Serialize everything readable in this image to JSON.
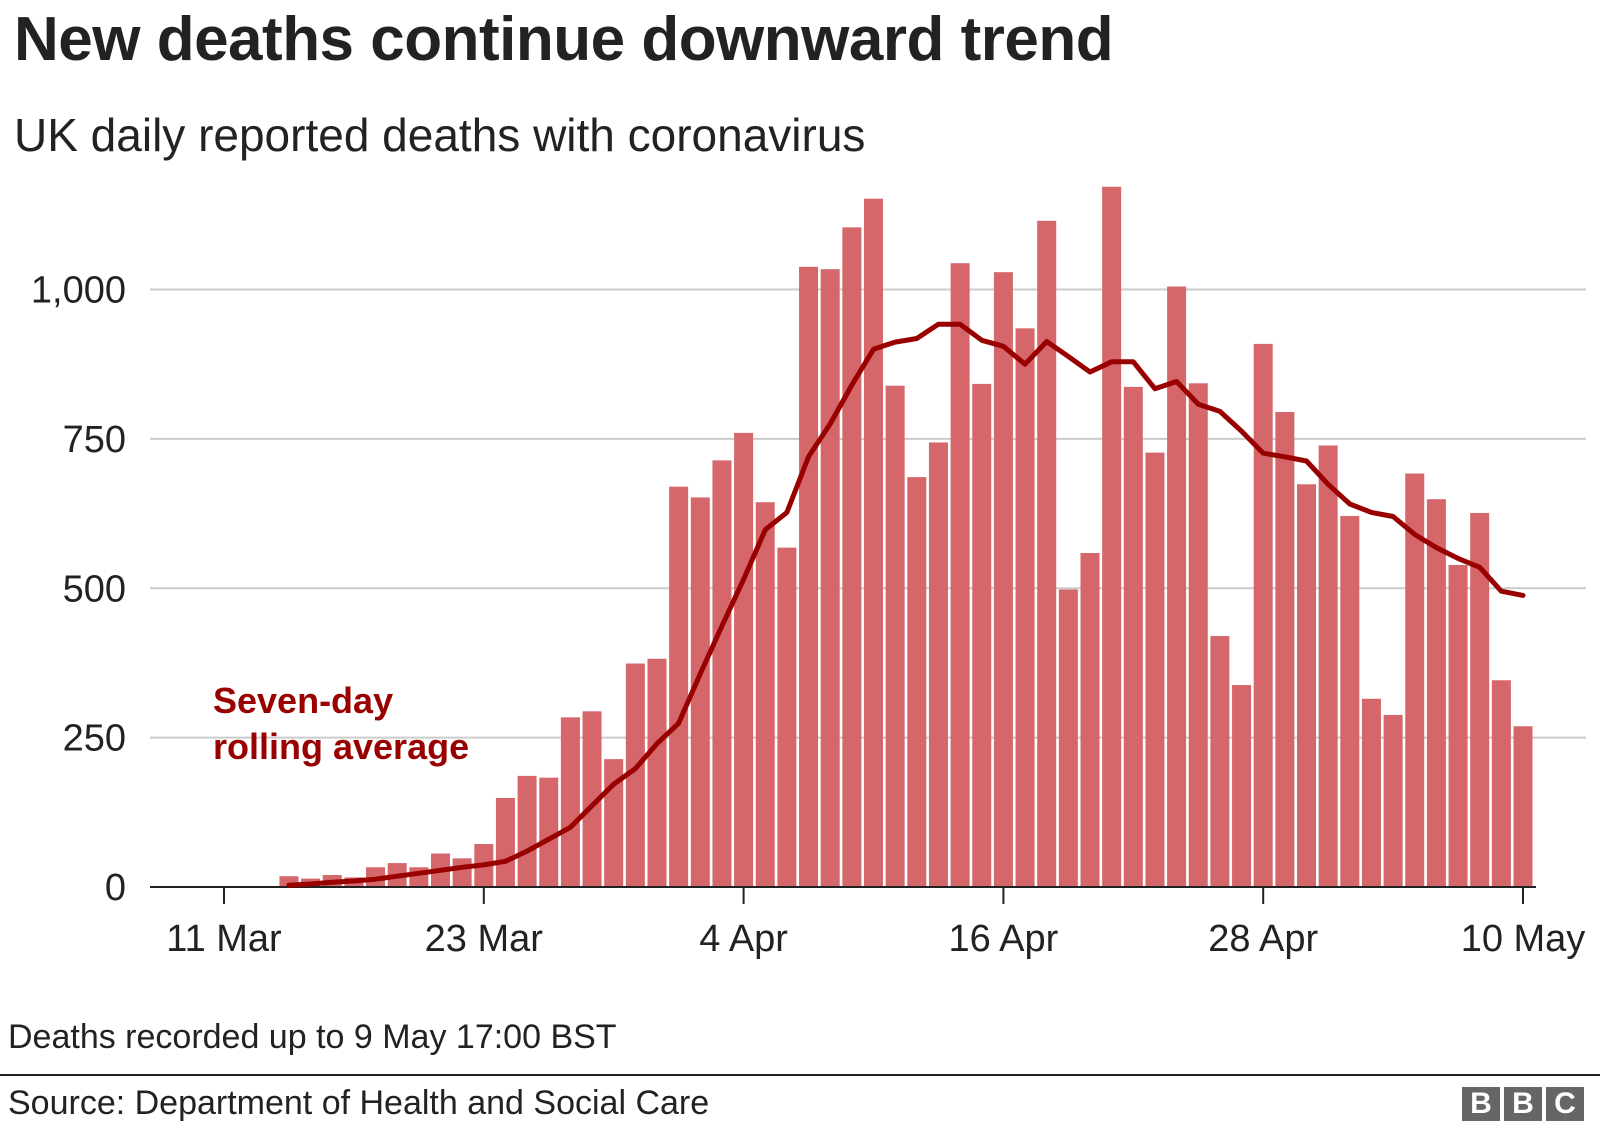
{
  "header": {
    "title": "New deaths continue downward trend",
    "subtitle": "UK daily reported deaths with coronavirus"
  },
  "footer": {
    "note": "Deaths recorded up to 9 May 17:00 BST",
    "source": "Source: Department of Health and Social Care",
    "logo_letters": [
      "B",
      "B",
      "C"
    ],
    "logo_color": "#666666"
  },
  "chart_data": {
    "type": "bar",
    "x_start_date": "2020-03-11",
    "x_end_date": "2020-05-10",
    "first_bar_date": "2020-03-14",
    "x_ticks": [
      "11 Mar",
      "23 Mar",
      "4 Apr",
      "16 Apr",
      "28 Apr",
      "10 May"
    ],
    "y_ticks": [
      0,
      250,
      500,
      750,
      1000
    ],
    "y_tick_labels": [
      "0",
      "250",
      "500",
      "750",
      "1,000"
    ],
    "ylim": [
      0,
      1200
    ],
    "grid": true,
    "series": [
      {
        "name": "Daily reported deaths",
        "kind": "bar",
        "color": "#d5666a",
        "values": [
          18,
          14,
          20,
          16,
          33,
          40,
          33,
          56,
          48,
          72,
          149,
          186,
          183,
          284,
          294,
          214,
          374,
          382,
          670,
          652,
          714,
          760,
          644,
          568,
          1038,
          1034,
          1104,
          1152,
          839,
          686,
          744,
          1044,
          842,
          1029,
          935,
          1115,
          498,
          559,
          1172,
          837,
          727,
          1005,
          843,
          420,
          338,
          909,
          795,
          674,
          739,
          621,
          315,
          288,
          692,
          649,
          539,
          626,
          346,
          269
        ]
      },
      {
        "name": "Seven-day rolling average",
        "kind": "line",
        "color": "#990000",
        "values": [
          3,
          5,
          8,
          10,
          13,
          18,
          23,
          28,
          33,
          37,
          43,
          60,
          80,
          100,
          136,
          172,
          198,
          240,
          274,
          357,
          437,
          515,
          598,
          627,
          720,
          775,
          840,
          900,
          912,
          918,
          942,
          942,
          915,
          905,
          875,
          913,
          888,
          862,
          879,
          879,
          834,
          846,
          808,
          796,
          763,
          726,
          720,
          713,
          674,
          641,
          627,
          620,
          590,
          568,
          550,
          535,
          495,
          488
        ]
      }
    ],
    "annotation": "Seven-day\nrolling average",
    "bar_color": "#d5666a",
    "line_color": "#990000",
    "grid_color": "#cccccc",
    "axis_color": "#222222"
  }
}
